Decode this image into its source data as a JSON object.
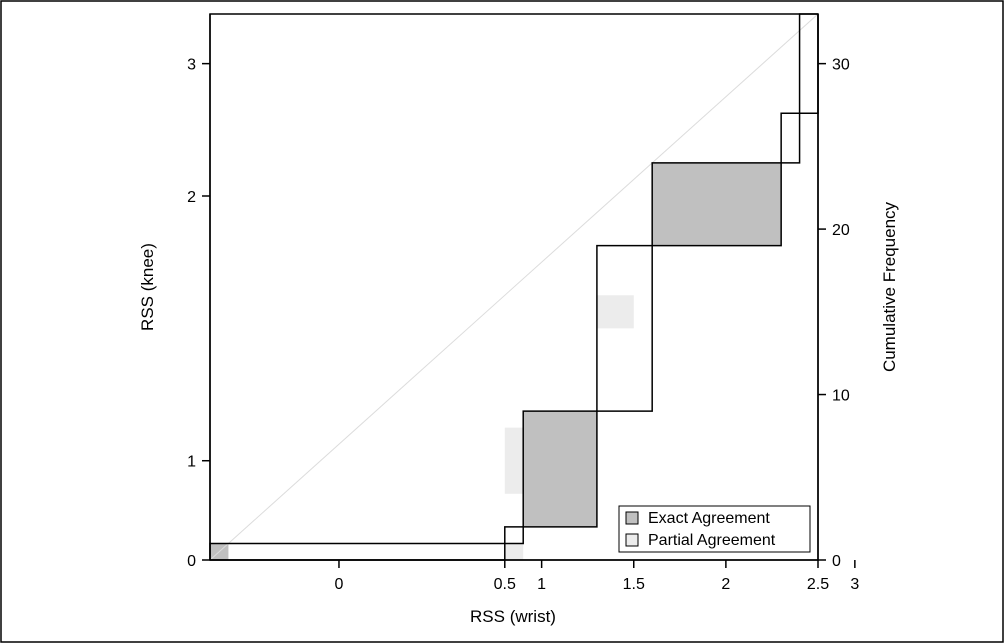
{
  "chart_data": {
    "type": "agreement",
    "x_axis": {
      "label": "RSS (wrist)",
      "ticks": [
        "0",
        "0.5",
        "1",
        "1.5",
        "2",
        "2.5",
        "3"
      ],
      "tick_positions": [
        7,
        16,
        18,
        23,
        28,
        33,
        35
      ]
    },
    "y_axis_left": {
      "label": "RSS (knee)",
      "ticks": [
        "0",
        "1",
        "2",
        "3"
      ],
      "tick_positions": [
        0,
        6,
        22,
        30
      ]
    },
    "y_axis_right": {
      "label": "Cumulative Frequency",
      "ticks": [
        "0",
        "10",
        "20",
        "30"
      ],
      "values": [
        0,
        10,
        20,
        30
      ]
    },
    "cumulative_range": [
      0,
      33
    ],
    "total": 33,
    "steps_x": [
      0,
      16,
      17,
      21,
      24,
      31,
      32,
      33
    ],
    "steps_y": [
      0,
      1,
      2,
      9,
      19,
      24,
      27,
      33
    ],
    "exact_agreement": [
      {
        "x0": 0,
        "x1": 1,
        "y0": 0,
        "y1": 1
      },
      {
        "x0": 17,
        "x1": 21,
        "y0": 2,
        "y1": 9
      },
      {
        "x0": 24,
        "x1": 31,
        "y0": 19,
        "y1": 24
      }
    ],
    "partial_agreement": [
      {
        "x0": 16,
        "x1": 17,
        "y0": 0,
        "y1": 1
      },
      {
        "x0": 16,
        "x1": 20,
        "y0": 4,
        "y1": 8
      },
      {
        "x0": 21,
        "x1": 23,
        "y0": 14,
        "y1": 16
      },
      {
        "x0": 25,
        "x1": 29,
        "y0": 20,
        "y1": 23
      }
    ],
    "legend": {
      "exact": "Exact Agreement",
      "partial": "Partial Agreement",
      "position": "bottom-right"
    },
    "colors": {
      "exact_agreement": "#c0c0c0",
      "partial_agreement": "#ececec",
      "step_line": "#000000",
      "diagonal": "#dcdcdc",
      "frame": "#000000"
    }
  }
}
